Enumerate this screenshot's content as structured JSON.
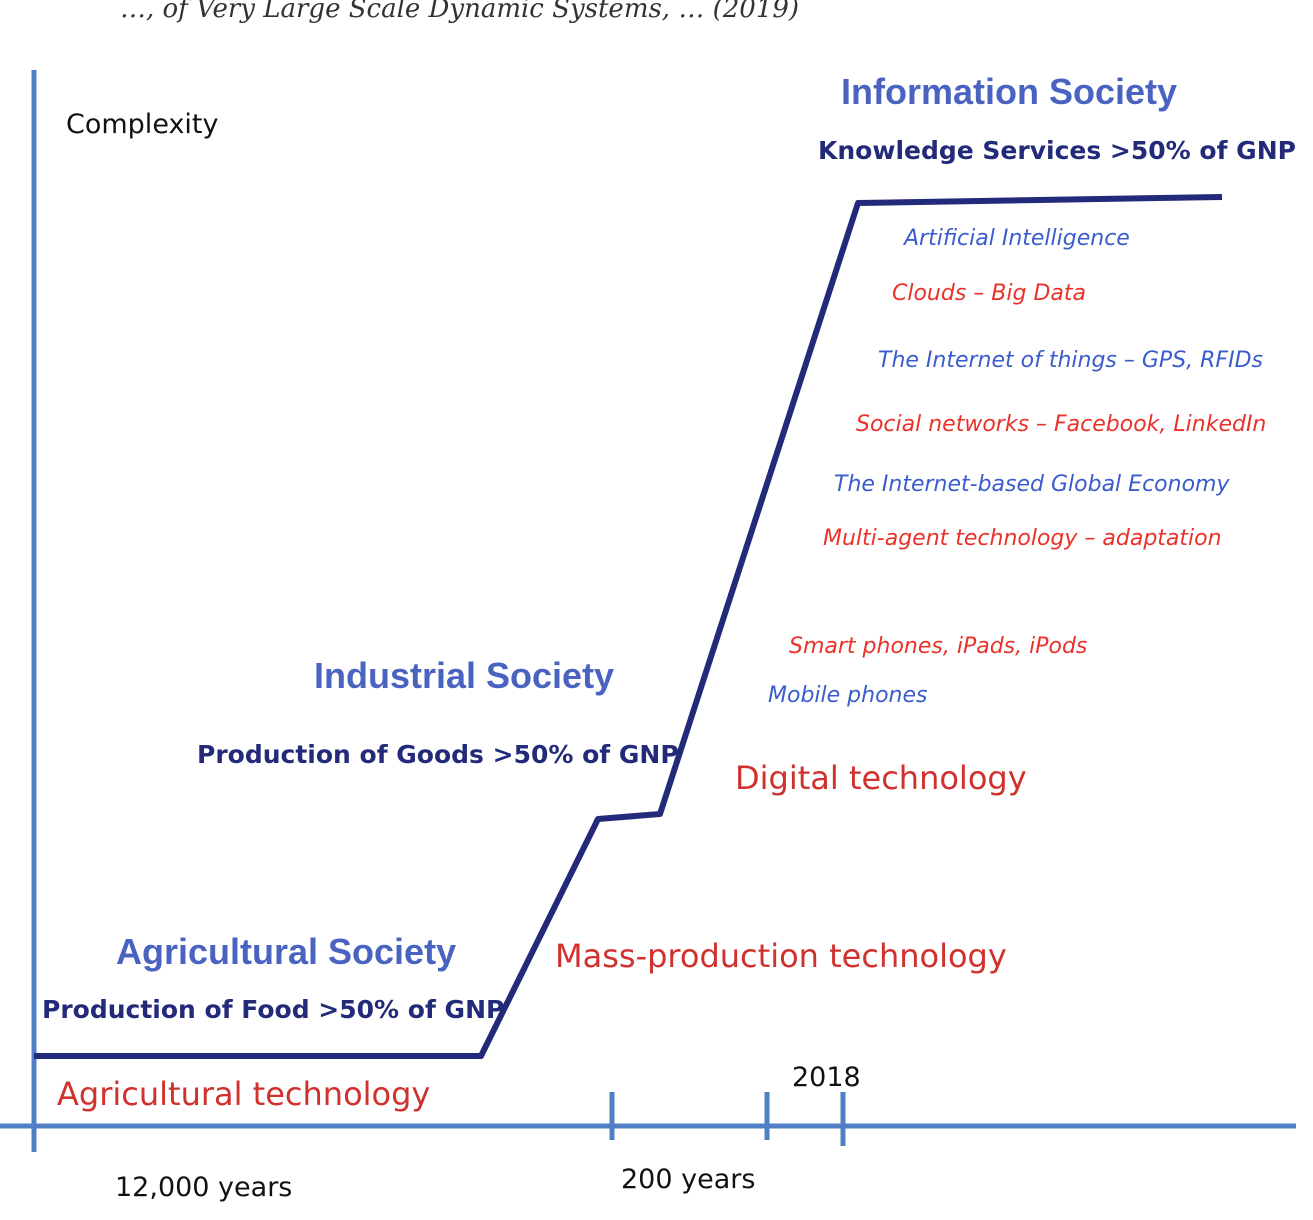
{
  "header_fragment": "…, of Very Large Scale Dynamic Systems, … (2019)",
  "y_axis_label": "Complexity",
  "societies": {
    "information": {
      "title": "Information Society",
      "share": "Knowledge Services >50% of GNP"
    },
    "industrial": {
      "title": "Industrial Society",
      "share": "Production of Goods >50% of GNP"
    },
    "agricultural": {
      "title": "Agricultural Society",
      "share": "Production of Food >50% of GNP"
    }
  },
  "technologies": {
    "agricultural": "Agricultural technology",
    "mass_production": "Mass-production technology",
    "digital": "Digital technology"
  },
  "digital_items": [
    {
      "text": "Artificial Intelligence",
      "color": "#3a5ccc"
    },
    {
      "text": "Clouds – Big Data",
      "color": "#e8322a"
    },
    {
      "text": "The Internet of things – GPS, RFIDs",
      "color": "#3a5ccc"
    },
    {
      "text": "Social networks – Facebook, LinkedIn",
      "color": "#e8322a"
    },
    {
      "text": "The Internet-based Global Economy",
      "color": "#3a5ccc"
    },
    {
      "text": "Multi-agent technology – adaptation",
      "color": "#e8322a"
    },
    {
      "text": "Smart phones, iPads, iPods",
      "color": "#e8322a"
    },
    {
      "text": "Mobile phones",
      "color": "#3a5ccc"
    }
  ],
  "x_axis": {
    "span_agricultural": "12,000 years",
    "span_industrial": "200 years",
    "year_marker": "2018"
  },
  "colors": {
    "axis": "#4f7fc4",
    "curve": "#232a7a",
    "society_title": "#4a63c0",
    "share_text": "#232a7a",
    "tech_text": "#d0312d"
  }
}
